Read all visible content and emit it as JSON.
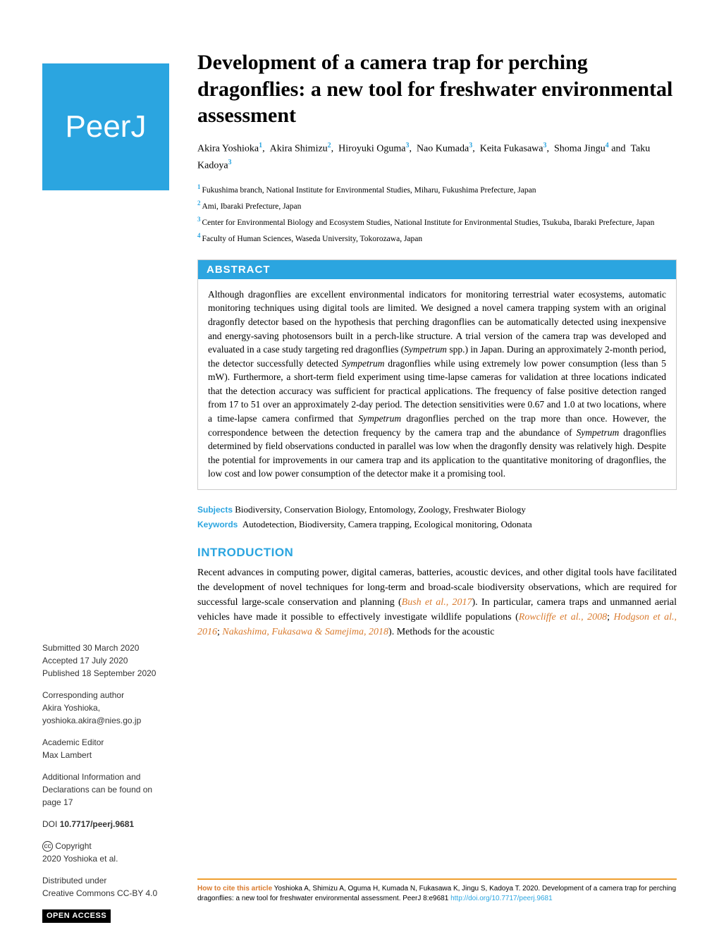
{
  "logo_text": "PeerJ",
  "title": "Development of a camera trap for perching dragonflies: a new tool for freshwater environmental assessment",
  "authors": [
    {
      "name": "Akira Yoshioka",
      "aff": "1"
    },
    {
      "name": "Akira Shimizu",
      "aff": "2"
    },
    {
      "name": "Hiroyuki Oguma",
      "aff": "3"
    },
    {
      "name": "Nao Kumada",
      "aff": "3"
    },
    {
      "name": "Keita Fukasawa",
      "aff": "3"
    },
    {
      "name": "Shoma Jingu",
      "aff": "4"
    },
    {
      "name": "Taku Kadoya",
      "aff": "3"
    }
  ],
  "affiliations": [
    {
      "num": "1",
      "text": "Fukushima branch, National Institute for Environmental Studies, Miharu, Fukushima Prefecture, Japan"
    },
    {
      "num": "2",
      "text": "Ami, Ibaraki Prefecture, Japan"
    },
    {
      "num": "3",
      "text": "Center for Environmental Biology and Ecosystem Studies, National Institute for Environmental Studies, Tsukuba, Ibaraki Prefecture, Japan"
    },
    {
      "num": "4",
      "text": "Faculty of Human Sciences, Waseda University, Tokorozawa, Japan"
    }
  ],
  "abstract_label": "ABSTRACT",
  "abstract_text": "Although dragonflies are excellent environmental indicators for monitoring terrestrial water ecosystems, automatic monitoring techniques using digital tools are limited. We designed a novel camera trapping system with an original dragonfly detector based on the hypothesis that perching dragonflies can be automatically detected using inexpensive and energy-saving photosensors built in a perch-like structure. A trial version of the camera trap was developed and evaluated in a case study targeting red dragonflies (Sympetrum spp.) in Japan. During an approximately 2-month period, the detector successfully detected Sympetrum dragonflies while using extremely low power consumption (less than 5 mW). Furthermore, a short-term field experiment using time-lapse cameras for validation at three locations indicated that the detection accuracy was sufficient for practical applications. The frequency of false positive detection ranged from 17 to 51 over an approximately 2-day period. The detection sensitivities were 0.67 and 1.0 at two locations, where a time-lapse camera confirmed that Sympetrum dragonflies perched on the trap more than once. However, the correspondence between the detection frequency by the camera trap and the abundance of Sympetrum dragonflies determined by field observations conducted in parallel was low when the dragonfly density was relatively high. Despite the potential for improvements in our camera trap and its application to the quantitative monitoring of dragonflies, the low cost and low power consumption of the detector make it a promising tool.",
  "subjects_label": "Subjects",
  "subjects": "Biodiversity, Conservation Biology, Entomology, Zoology, Freshwater Biology",
  "keywords_label": "Keywords",
  "keywords": "Autodetection, Biodiversity, Camera trapping, Ecological monitoring, Odonata",
  "introduction_label": "INTRODUCTION",
  "intro_p1a": "Recent advances in computing power, digital cameras, batteries, acoustic devices, and other digital tools have facilitated the development of novel techniques for long-term and broad-scale biodiversity observations, which are required for successful large-scale conservation and planning (",
  "intro_cite1": "Bush et al., 2017",
  "intro_p1b": "). In particular, camera traps and unmanned aerial vehicles have made it possible to effectively investigate wildlife populations (",
  "intro_cite2": "Rowcliffe et al., 2008",
  "intro_p1c": "; ",
  "intro_cite3": "Hodgson et al., 2016",
  "intro_p1d": "; ",
  "intro_cite4": "Nakashima, Fukasawa & Samejima, 2018",
  "intro_p1e": "). Methods for the acoustic",
  "sidebar": {
    "submitted_label": "Submitted",
    "submitted": "30 March 2020",
    "accepted_label": "Accepted",
    "accepted": "17 July 2020",
    "published_label": "Published",
    "published": "18 September 2020",
    "corr_author_label": "Corresponding author",
    "corr_author_name": "Akira Yoshioka,",
    "corr_author_email": "yoshioka.akira@nies.go.jp",
    "editor_label": "Academic Editor",
    "editor_name": "Max Lambert",
    "addl_info": "Additional Information and Declarations can be found on page 17",
    "doi_label": "DOI",
    "doi": "10.7717/peerj.9681",
    "copyright_label": "Copyright",
    "copyright_text": "2020 Yoshioka et al.",
    "dist_label": "Distributed under",
    "dist_text": "Creative Commons CC-BY 4.0",
    "open_access": "OPEN ACCESS"
  },
  "footer": {
    "label": "How to cite this article",
    "text": "Yoshioka A, Shimizu A, Oguma H, Kumada N, Fukasawa K, Jingu S, Kadoya T. 2020. Development of a camera trap for perching dragonflies: a new tool for freshwater environmental assessment. PeerJ 8:e9681 ",
    "url": "http://doi.org/10.7717/peerj.9681"
  },
  "colors": {
    "brand_blue": "#2ba5e0",
    "cite_orange": "#d97b2e",
    "footer_border": "#f0a030"
  }
}
